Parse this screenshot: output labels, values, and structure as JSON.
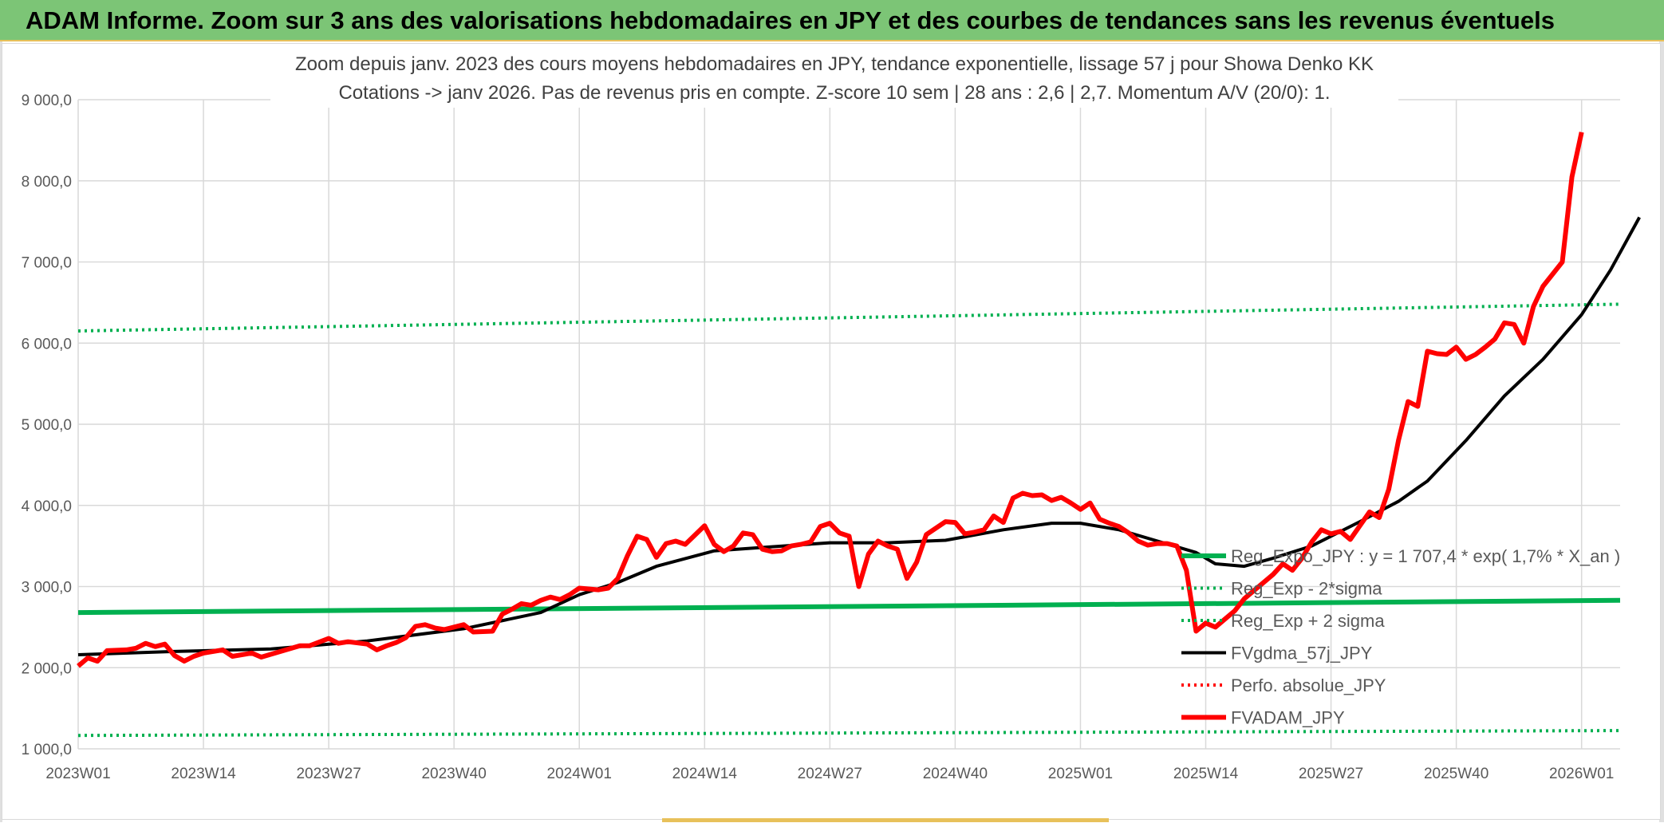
{
  "header": {
    "title": "ADAM Informe. Zoom sur 3 ans des valorisations hebdomadaires en JPY et des courbes de tendances sans les revenus éventuels"
  },
  "colors": {
    "banner": "#7cc576",
    "accent": "#e8c15a",
    "reg_expo": "#00b050",
    "sigma": "#00b050",
    "fvgdma": "#000000",
    "perfo": "#ff0000",
    "fvadam": "#ff0000",
    "grid": "#d9d9d9",
    "text": "#595959",
    "title_text": "#404040"
  },
  "chart_data": {
    "type": "line",
    "title_line1": "Zoom depuis janv. 2023 des cours moyens hebdomadaires en JPY, tendance exponentielle, lissage 57 j pour Showa Denko KK",
    "title_line2": "Cotations -> janv 2026. Pas de revenus pris en compte. Z-score 10 sem | 28 ans : 2,6 | 2,7. Momentum A/V (20/0): 1.",
    "ylim": [
      1000,
      9000
    ],
    "y_ticks": [
      "1 000,0",
      "2 000,0",
      "3 000,0",
      "4 000,0",
      "5 000,0",
      "6 000,0",
      "7 000,0",
      "8 000,0",
      "9 000,0"
    ],
    "x_tick_labels": [
      "2023W01",
      "2023W14",
      "2023W27",
      "2023W40",
      "2024W01",
      "2024W14",
      "2024W27",
      "2024W40",
      "2025W01",
      "2025W14",
      "2025W27",
      "2025W40",
      "2026W01"
    ],
    "x_tick_weeks": [
      0,
      13,
      26,
      39,
      52,
      65,
      78,
      91,
      104,
      117,
      130,
      143,
      156
    ],
    "x_range_weeks": [
      0,
      160
    ],
    "grid": true,
    "legend": [
      {
        "key": "reg_expo",
        "label": "Reg_Expo_JPY : y = 1 707,4 * exp( 1,7% *  X_an )",
        "style": "solid-thick",
        "color": "#00b050"
      },
      {
        "key": "reg_minus",
        "label": "Reg_Exp - 2*sigma",
        "style": "dotted",
        "color": "#00b050"
      },
      {
        "key": "reg_plus",
        "label": "Reg_Exp + 2 sigma",
        "style": "dotted",
        "color": "#00b050"
      },
      {
        "key": "fvgdma",
        "label": "FVgdma_57j_JPY",
        "style": "solid",
        "color": "#000000"
      },
      {
        "key": "perfo",
        "label": "Perfo. absolue_JPY",
        "style": "dotted",
        "color": "#ff0000"
      },
      {
        "key": "fvadam",
        "label": "FVADAM_JPY",
        "style": "solid-thick",
        "color": "#ff0000"
      }
    ],
    "series": [
      {
        "key": "reg_expo",
        "points": [
          [
            0,
            2680
          ],
          [
            160,
            2830
          ]
        ]
      },
      {
        "key": "reg_minus",
        "points": [
          [
            0,
            1165
          ],
          [
            160,
            1225
          ]
        ]
      },
      {
        "key": "reg_plus",
        "points": [
          [
            0,
            6150
          ],
          [
            160,
            6480
          ]
        ]
      },
      {
        "key": "fvgdma",
        "points": [
          [
            0,
            2160
          ],
          [
            10,
            2200
          ],
          [
            20,
            2230
          ],
          [
            30,
            2330
          ],
          [
            40,
            2480
          ],
          [
            48,
            2680
          ],
          [
            52,
            2900
          ],
          [
            56,
            3050
          ],
          [
            60,
            3250
          ],
          [
            66,
            3440
          ],
          [
            72,
            3490
          ],
          [
            78,
            3540
          ],
          [
            84,
            3540
          ],
          [
            90,
            3570
          ],
          [
            96,
            3700
          ],
          [
            101,
            3780
          ],
          [
            104,
            3780
          ],
          [
            108,
            3700
          ],
          [
            112,
            3560
          ],
          [
            116,
            3420
          ],
          [
            118,
            3280
          ],
          [
            121,
            3250
          ],
          [
            124,
            3350
          ],
          [
            128,
            3500
          ],
          [
            133,
            3800
          ],
          [
            137,
            4050
          ],
          [
            140,
            4300
          ],
          [
            144,
            4800
          ],
          [
            148,
            5350
          ],
          [
            152,
            5800
          ],
          [
            156,
            6350
          ],
          [
            159,
            6900
          ],
          [
            162,
            7550
          ]
        ]
      },
      {
        "key": "fvadam",
        "points": [
          [
            0,
            2020
          ],
          [
            1,
            2120
          ],
          [
            2,
            2080
          ],
          [
            3,
            2210
          ],
          [
            5,
            2220
          ],
          [
            6,
            2240
          ],
          [
            7,
            2300
          ],
          [
            8,
            2260
          ],
          [
            9,
            2290
          ],
          [
            10,
            2150
          ],
          [
            11,
            2080
          ],
          [
            12,
            2140
          ],
          [
            13,
            2180
          ],
          [
            15,
            2220
          ],
          [
            16,
            2140
          ],
          [
            18,
            2180
          ],
          [
            19,
            2130
          ],
          [
            21,
            2200
          ],
          [
            23,
            2270
          ],
          [
            24,
            2270
          ],
          [
            26,
            2360
          ],
          [
            27,
            2300
          ],
          [
            28,
            2320
          ],
          [
            30,
            2290
          ],
          [
            31,
            2220
          ],
          [
            32,
            2270
          ],
          [
            33,
            2310
          ],
          [
            34,
            2370
          ],
          [
            35,
            2510
          ],
          [
            36,
            2530
          ],
          [
            37,
            2490
          ],
          [
            38,
            2470
          ],
          [
            40,
            2530
          ],
          [
            41,
            2440
          ],
          [
            43,
            2450
          ],
          [
            44,
            2660
          ],
          [
            45,
            2720
          ],
          [
            46,
            2790
          ],
          [
            47,
            2770
          ],
          [
            48,
            2830
          ],
          [
            49,
            2870
          ],
          [
            50,
            2840
          ],
          [
            51,
            2900
          ],
          [
            52,
            2980
          ],
          [
            54,
            2960
          ],
          [
            55,
            2980
          ],
          [
            56,
            3100
          ],
          [
            57,
            3380
          ],
          [
            58,
            3620
          ],
          [
            59,
            3580
          ],
          [
            60,
            3360
          ],
          [
            61,
            3530
          ],
          [
            62,
            3560
          ],
          [
            63,
            3520
          ],
          [
            65,
            3750
          ],
          [
            66,
            3520
          ],
          [
            67,
            3430
          ],
          [
            68,
            3500
          ],
          [
            69,
            3660
          ],
          [
            70,
            3640
          ],
          [
            71,
            3460
          ],
          [
            72,
            3430
          ],
          [
            73,
            3440
          ],
          [
            74,
            3500
          ],
          [
            75,
            3520
          ],
          [
            76,
            3550
          ],
          [
            77,
            3740
          ],
          [
            78,
            3780
          ],
          [
            79,
            3660
          ],
          [
            80,
            3620
          ],
          [
            81,
            3000
          ],
          [
            82,
            3400
          ],
          [
            83,
            3560
          ],
          [
            84,
            3500
          ],
          [
            85,
            3460
          ],
          [
            86,
            3100
          ],
          [
            87,
            3300
          ],
          [
            88,
            3640
          ],
          [
            90,
            3800
          ],
          [
            91,
            3790
          ],
          [
            92,
            3650
          ],
          [
            93,
            3670
          ],
          [
            94,
            3700
          ],
          [
            95,
            3870
          ],
          [
            96,
            3790
          ],
          [
            97,
            4090
          ],
          [
            98,
            4150
          ],
          [
            99,
            4120
          ],
          [
            100,
            4130
          ],
          [
            101,
            4060
          ],
          [
            102,
            4100
          ],
          [
            103,
            4030
          ],
          [
            104,
            3950
          ],
          [
            105,
            4030
          ],
          [
            106,
            3830
          ],
          [
            107,
            3780
          ],
          [
            108,
            3740
          ],
          [
            109,
            3660
          ],
          [
            110,
            3560
          ],
          [
            111,
            3510
          ],
          [
            112,
            3530
          ],
          [
            113,
            3530
          ],
          [
            114,
            3500
          ],
          [
            115,
            3200
          ],
          [
            116,
            2450
          ],
          [
            117,
            2550
          ],
          [
            118,
            2500
          ],
          [
            119,
            2600
          ],
          [
            120,
            2700
          ],
          [
            121,
            2850
          ],
          [
            122,
            2950
          ],
          [
            123,
            3050
          ],
          [
            124,
            3150
          ],
          [
            125,
            3280
          ],
          [
            126,
            3200
          ],
          [
            127,
            3350
          ],
          [
            128,
            3550
          ],
          [
            129,
            3700
          ],
          [
            130,
            3650
          ],
          [
            131,
            3680
          ],
          [
            132,
            3580
          ],
          [
            133,
            3750
          ],
          [
            134,
            3920
          ],
          [
            135,
            3850
          ],
          [
            136,
            4200
          ],
          [
            137,
            4800
          ],
          [
            138,
            5280
          ],
          [
            139,
            5220
          ],
          [
            140,
            5900
          ],
          [
            141,
            5870
          ],
          [
            142,
            5860
          ],
          [
            143,
            5950
          ],
          [
            144,
            5800
          ],
          [
            145,
            5860
          ],
          [
            146,
            5950
          ],
          [
            147,
            6050
          ],
          [
            148,
            6250
          ],
          [
            149,
            6230
          ],
          [
            150,
            6000
          ],
          [
            151,
            6450
          ],
          [
            152,
            6700
          ],
          [
            154,
            7000
          ],
          [
            155,
            8050
          ],
          [
            156,
            8600
          ]
        ]
      }
    ]
  }
}
